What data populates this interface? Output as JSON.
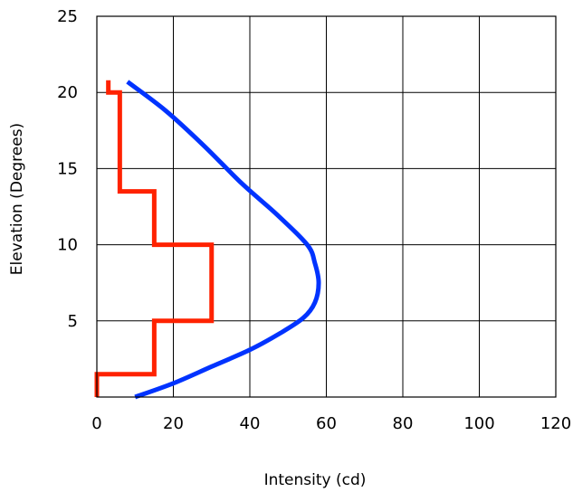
{
  "chart_data": {
    "type": "line",
    "title": "",
    "xlabel": "Intensity (cd)",
    "ylabel": "Elevation (Degrees)",
    "xlim": [
      0,
      120
    ],
    "ylim": [
      0,
      25
    ],
    "x_ticks": [
      "0",
      "20",
      "40",
      "60",
      "80",
      "100",
      "120"
    ],
    "y_ticks": [
      "5",
      "10",
      "15",
      "20",
      "25"
    ],
    "x_tick_values": [
      0,
      20,
      40,
      60,
      80,
      100,
      120
    ],
    "y_tick_values": [
      5,
      10,
      15,
      20,
      25
    ],
    "grid": true,
    "legend": "none",
    "series": [
      {
        "color": "#ff2200",
        "shape": "step",
        "points": [
          [
            0,
            0
          ],
          [
            0,
            1.5
          ],
          [
            15,
            1.5
          ],
          [
            15,
            5
          ],
          [
            30,
            5
          ],
          [
            30,
            10
          ],
          [
            15,
            10
          ],
          [
            15,
            13.5
          ],
          [
            6,
            13.5
          ],
          [
            6,
            20
          ],
          [
            3,
            20
          ],
          [
            3,
            20.8
          ]
        ]
      },
      {
        "color": "#0033ff",
        "shape": "curve",
        "points": [
          [
            10,
            0
          ],
          [
            20,
            0.9
          ],
          [
            30,
            2
          ],
          [
            40,
            3.1
          ],
          [
            48,
            4.2
          ],
          [
            54,
            5.2
          ],
          [
            57,
            6.2
          ],
          [
            58,
            7.5
          ],
          [
            57,
            8.8
          ],
          [
            55,
            10
          ],
          [
            47,
            12
          ],
          [
            38,
            14
          ],
          [
            28,
            16.5
          ],
          [
            18,
            18.8
          ],
          [
            8,
            20.7
          ]
        ]
      }
    ]
  }
}
